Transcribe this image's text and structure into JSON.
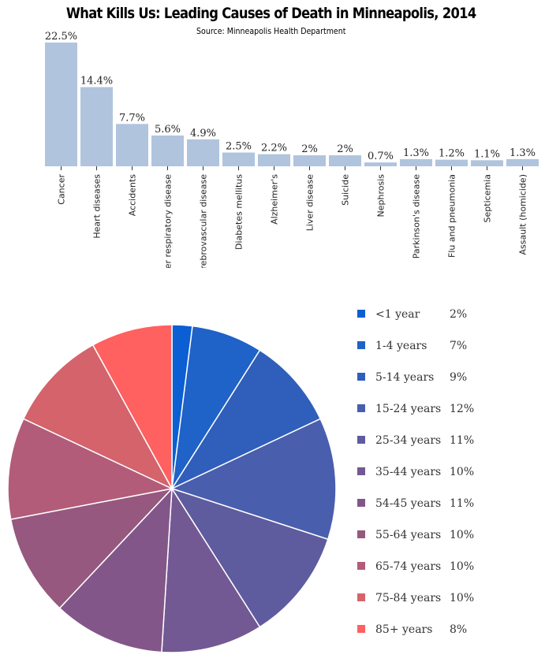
{
  "title": "What Kills Us: Leading Causes of Death in Minneapolis, 2014",
  "subtitle": "Source: Minneapolis Health Department",
  "colors": {
    "bar": "#b0c4de",
    "pie": [
      "#0b5fd3",
      "#1f62c8",
      "#2f5fba",
      "#495ead",
      "#5f5b9f",
      "#735993",
      "#835689",
      "#96587e",
      "#b25c7a",
      "#d4636c",
      "#ff6060"
    ]
  },
  "chart_data": [
    {
      "type": "bar",
      "categories": [
        "Cancer",
        "Heart diseases",
        "Accidents",
        "Lower respiratory disease",
        "Cerebrovascular disease",
        "Diabetes mellitus",
        "Alzheimer's",
        "Liver disease",
        "Suicide",
        "Nephrosis",
        "Parkinson's disease",
        "Flu and pneumonia",
        "Septicemia",
        "Assault (homicide)"
      ],
      "values": [
        22.5,
        14.4,
        7.7,
        5.6,
        4.9,
        2.5,
        2.2,
        2,
        2,
        0.7,
        1.3,
        1.2,
        1.1,
        1.3
      ],
      "value_labels": [
        "22.5%",
        "14.4%",
        "7.7%",
        "5.6%",
        "4.9%",
        "2.5%",
        "2.2%",
        "2%",
        "2%",
        "0.7%",
        "1.3%",
        "1.2%",
        "1.1%",
        "1.3%"
      ],
      "unit": "%",
      "ylim": [
        0,
        22.5
      ],
      "grid": false
    },
    {
      "type": "pie",
      "categories": [
        "<1 year",
        "1-4 years",
        "5-14 years",
        "15-24 years",
        "25-34 years",
        "35-44 years",
        "54-45 years",
        "55-64 years",
        "65-74 years",
        "75-84 years",
        "85+ years"
      ],
      "values": [
        2,
        7,
        9,
        12,
        11,
        10,
        11,
        10,
        10,
        10,
        8
      ],
      "value_labels": [
        "2%",
        "7%",
        "9%",
        "12%",
        "11%",
        "10%",
        "11%",
        "10%",
        "10%",
        "10%",
        "8%"
      ],
      "legend_position": "right"
    }
  ]
}
